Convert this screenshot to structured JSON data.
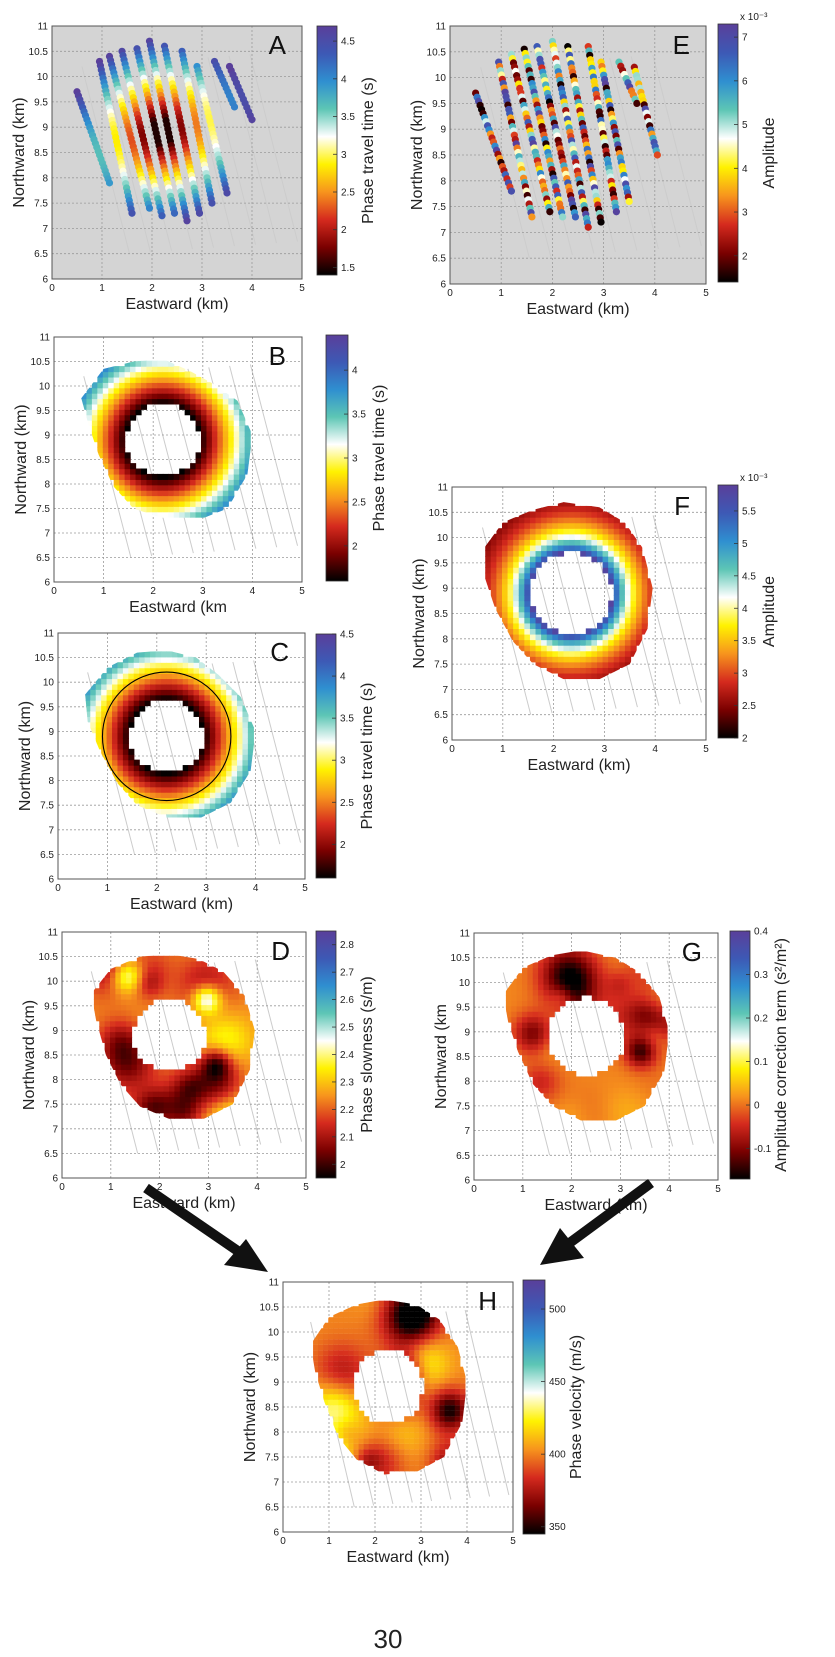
{
  "figure": {
    "page_number": "30"
  },
  "colors": {
    "colormap": [
      "#000000",
      "#7a0000",
      "#d52a1e",
      "#f7941d",
      "#fff200",
      "#ffffff",
      "#5dc6b5",
      "#2f8fd0",
      "#3d59b5",
      "#5a3f9a"
    ],
    "panel_background": "#d4d4d4",
    "arrow": "#111111"
  },
  "chart_data": [
    {
      "id": "A",
      "type": "scatter",
      "panel_label": "A",
      "xlabel": "Eastward (km)",
      "ylabel": "Northward (km)",
      "xlim": [
        0,
        5
      ],
      "ylim": [
        6,
        11
      ],
      "xticks": [
        "0",
        "1",
        "2",
        "3",
        "4",
        "5"
      ],
      "yticks": [
        "6",
        "6.5",
        "7",
        "7.5",
        "8",
        "8.5",
        "9",
        "9.5",
        "10",
        "10.5",
        "11"
      ],
      "colorbar": {
        "label": "Phase travel time (s)",
        "ticks": [
          "1.5",
          "2",
          "2.5",
          "3",
          "3.5",
          "4",
          "4.5"
        ],
        "range": [
          1.4,
          4.7
        ],
        "exponent": ""
      },
      "grid": true,
      "background": "gray",
      "source_x": 2.2,
      "source_y": 8.9,
      "field": "distance",
      "field_params": {
        "base": 1.5,
        "slope": 2.0
      },
      "lines": [
        {
          "x0": 0.5,
          "y0": 9.7,
          "x1": 1.15,
          "y1": 7.9
        },
        {
          "x0": 0.95,
          "y0": 10.3,
          "x1": 1.6,
          "y1": 7.3
        },
        {
          "x0": 1.15,
          "y0": 10.4,
          "x1": 1.95,
          "y1": 7.4
        },
        {
          "x0": 1.4,
          "y0": 10.5,
          "x1": 2.2,
          "y1": 7.25
        },
        {
          "x0": 1.7,
          "y0": 10.55,
          "x1": 2.45,
          "y1": 7.3
        },
        {
          "x0": 1.95,
          "y0": 10.7,
          "x1": 2.7,
          "y1": 7.15
        },
        {
          "x0": 2.25,
          "y0": 10.6,
          "x1": 2.95,
          "y1": 7.3
        },
        {
          "x0": 2.6,
          "y0": 10.5,
          "x1": 3.2,
          "y1": 7.5
        },
        {
          "x0": 2.9,
          "y0": 10.2,
          "x1": 3.5,
          "y1": 7.7
        },
        {
          "x0": 3.25,
          "y0": 10.3,
          "x1": 3.65,
          "y1": 9.4
        },
        {
          "x0": 3.55,
          "y0": 10.2,
          "x1": 4.0,
          "y1": 9.15
        }
      ]
    },
    {
      "id": "E",
      "type": "scatter",
      "panel_label": "E",
      "xlabel": "Eastward (km)",
      "ylabel": "Northward (km)",
      "xlim": [
        0,
        5
      ],
      "ylim": [
        6,
        11
      ],
      "xticks": [
        "0",
        "1",
        "2",
        "3",
        "4",
        "5"
      ],
      "yticks": [
        "6",
        "6.5",
        "7",
        "7.5",
        "8",
        "8.5",
        "9",
        "9.5",
        "10",
        "10.5",
        "11"
      ],
      "colorbar": {
        "label": "Amplitude",
        "ticks": [
          "2",
          "3",
          "4",
          "5",
          "6",
          "7"
        ],
        "range": [
          1.4,
          7.3
        ],
        "exponent": "x 10⁻³"
      },
      "grid": true,
      "background": "gray",
      "source_x": 2.2,
      "source_y": 8.9,
      "field": "noise",
      "lines": [
        {
          "x0": 0.5,
          "y0": 9.7,
          "x1": 1.2,
          "y1": 7.8
        },
        {
          "x0": 0.95,
          "y0": 10.3,
          "x1": 1.6,
          "y1": 7.3
        },
        {
          "x0": 1.2,
          "y0": 10.45,
          "x1": 1.95,
          "y1": 7.4
        },
        {
          "x0": 1.45,
          "y0": 10.55,
          "x1": 2.2,
          "y1": 7.3
        },
        {
          "x0": 1.7,
          "y0": 10.6,
          "x1": 2.45,
          "y1": 7.3
        },
        {
          "x0": 2.0,
          "y0": 10.7,
          "x1": 2.7,
          "y1": 7.1
        },
        {
          "x0": 2.3,
          "y0": 10.6,
          "x1": 2.95,
          "y1": 7.2
        },
        {
          "x0": 2.7,
          "y0": 10.6,
          "x1": 3.25,
          "y1": 7.4
        },
        {
          "x0": 2.95,
          "y0": 10.3,
          "x1": 3.5,
          "y1": 7.6
        },
        {
          "x0": 3.3,
          "y0": 10.3,
          "x1": 3.65,
          "y1": 9.5
        },
        {
          "x0": 3.6,
          "y0": 10.2,
          "x1": 4.05,
          "y1": 8.5
        }
      ]
    },
    {
      "id": "B",
      "type": "heatmap",
      "panel_label": "B",
      "xlabel": "Eastward (km",
      "ylabel": "Northward (km)",
      "xlim": [
        0,
        5
      ],
      "ylim": [
        6,
        11
      ],
      "xticks": [
        "0",
        "1",
        "2",
        "3",
        "4",
        "5"
      ],
      "yticks": [
        "6",
        "6.5",
        "7",
        "7.5",
        "8",
        "8.5",
        "9",
        "9.5",
        "10",
        "10.5",
        "11"
      ],
      "colorbar": {
        "label": "Phase travel time (s)",
        "ticks": [
          "2",
          "2.5",
          "3",
          "3.5",
          "4"
        ],
        "range": [
          1.6,
          4.4
        ],
        "exponent": ""
      },
      "grid": true,
      "background": "white",
      "source_x": 2.2,
      "source_y": 8.9,
      "inner_radius": 0.75,
      "field": "distance",
      "field_params": {
        "base": 1.6,
        "slope": 2.0
      },
      "domain": [
        [
          0.55,
          9.75
        ],
        [
          1.0,
          10.35
        ],
        [
          1.6,
          10.5
        ],
        [
          2.2,
          10.55
        ],
        [
          2.75,
          10.3
        ],
        [
          3.2,
          10.05
        ],
        [
          3.7,
          9.7
        ],
        [
          4.0,
          9.0
        ],
        [
          3.9,
          8.2
        ],
        [
          3.5,
          7.5
        ],
        [
          3.0,
          7.3
        ],
        [
          2.2,
          7.3
        ],
        [
          1.6,
          7.5
        ],
        [
          1.2,
          7.95
        ],
        [
          0.9,
          8.6
        ],
        [
          0.7,
          9.2
        ]
      ],
      "contours": []
    },
    {
      "id": "C",
      "type": "heatmap",
      "panel_label": "C",
      "xlabel": "Eastward (km)",
      "ylabel": "Northward (km)",
      "xlim": [
        0,
        5
      ],
      "ylim": [
        6,
        11
      ],
      "xticks": [
        "0",
        "1",
        "2",
        "3",
        "4",
        "5"
      ],
      "yticks": [
        "6",
        "6.5",
        "7",
        "7.5",
        "8",
        "8.5",
        "9",
        "9.5",
        "10",
        "10.5",
        "11"
      ],
      "colorbar": {
        "label": "Phase travel time (s)",
        "ticks": [
          "2",
          "2.5",
          "3",
          "3.5",
          "4",
          "4.5"
        ],
        "range": [
          1.6,
          4.5
        ],
        "exponent": ""
      },
      "grid": true,
      "background": "white",
      "source_x": 2.2,
      "source_y": 8.9,
      "inner_radius": 0.75,
      "field": "distance",
      "field_params": {
        "base": 1.6,
        "slope": 2.0
      },
      "domain": [
        [
          0.55,
          9.75
        ],
        [
          1.0,
          10.3
        ],
        [
          1.6,
          10.6
        ],
        [
          2.2,
          10.65
        ],
        [
          2.8,
          10.5
        ],
        [
          3.25,
          10.15
        ],
        [
          3.7,
          9.7
        ],
        [
          4.0,
          9.0
        ],
        [
          3.9,
          8.2
        ],
        [
          3.5,
          7.55
        ],
        [
          2.9,
          7.25
        ],
        [
          2.2,
          7.25
        ],
        [
          1.6,
          7.5
        ],
        [
          1.2,
          7.95
        ],
        [
          0.85,
          8.6
        ],
        [
          0.6,
          9.2
        ]
      ],
      "contours": [
        1.3,
        1.95
      ]
    },
    {
      "id": "F",
      "type": "heatmap",
      "panel_label": "F",
      "xlabel": "Eastward (km)",
      "ylabel": "Northward (km)",
      "xlim": [
        0,
        5
      ],
      "ylim": [
        6,
        11
      ],
      "xticks": [
        "0",
        "1",
        "2",
        "3",
        "4",
        "5"
      ],
      "yticks": [
        "6",
        "6.5",
        "7",
        "7.5",
        "8",
        "8.5",
        "9",
        "9.5",
        "10",
        "10.5",
        "11"
      ],
      "colorbar": {
        "label": "Amplitude",
        "ticks": [
          "2",
          "2.5",
          "3",
          "3.5",
          "4",
          "4.5",
          "5",
          "5.5"
        ],
        "range": [
          2.0,
          5.9
        ],
        "exponent": "x 10⁻³"
      },
      "grid": true,
      "background": "white",
      "source_x": 2.35,
      "source_y": 8.9,
      "inner_radius": 0.8,
      "field": "decay",
      "field_params": {
        "top": 5.9,
        "bottom": 2.0,
        "scale": 0.55
      },
      "domain": [
        [
          0.6,
          9.75
        ],
        [
          1.0,
          10.3
        ],
        [
          1.6,
          10.55
        ],
        [
          2.2,
          10.7
        ],
        [
          2.9,
          10.6
        ],
        [
          3.4,
          10.3
        ],
        [
          3.75,
          9.8
        ],
        [
          3.95,
          9.0
        ],
        [
          3.85,
          8.2
        ],
        [
          3.5,
          7.5
        ],
        [
          2.9,
          7.2
        ],
        [
          2.2,
          7.2
        ],
        [
          1.6,
          7.5
        ],
        [
          1.2,
          7.95
        ],
        [
          0.85,
          8.6
        ],
        [
          0.65,
          9.2
        ]
      ],
      "contours": []
    },
    {
      "id": "D",
      "type": "heatmap",
      "panel_label": "D",
      "xlabel": "Eastward (km)",
      "ylabel": "Northward (km)",
      "xlim": [
        0,
        5
      ],
      "ylim": [
        6,
        11
      ],
      "xticks": [
        "0",
        "1",
        "2",
        "3",
        "4",
        "5"
      ],
      "yticks": [
        "6",
        "6.5",
        "7",
        "7.5",
        "8",
        "8.5",
        "9",
        "9.5",
        "10",
        "10.5",
        "11"
      ],
      "colorbar": {
        "label": "Phase slowness (s/m)",
        "ticks": [
          "2",
          "2.1",
          "2.2",
          "2.3",
          "2.4",
          "2.5",
          "2.6",
          "2.7",
          "2.8"
        ],
        "range": [
          1.95,
          2.85
        ],
        "exponent": ""
      },
      "grid": true,
      "background": "white",
      "source_x": 2.2,
      "source_y": 8.9,
      "inner_radius": 0.75,
      "field": "blobs",
      "domain": [
        [
          0.6,
          9.75
        ],
        [
          1.0,
          10.25
        ],
        [
          1.6,
          10.5
        ],
        [
          2.2,
          10.55
        ],
        [
          2.8,
          10.45
        ],
        [
          3.3,
          10.2
        ],
        [
          3.75,
          9.7
        ],
        [
          3.95,
          9.0
        ],
        [
          3.85,
          8.2
        ],
        [
          3.5,
          7.5
        ],
        [
          2.9,
          7.2
        ],
        [
          2.2,
          7.2
        ],
        [
          1.6,
          7.45
        ],
        [
          1.2,
          7.9
        ],
        [
          0.9,
          8.5
        ],
        [
          0.7,
          9.2
        ]
      ],
      "contours": []
    },
    {
      "id": "G",
      "type": "heatmap",
      "panel_label": "G",
      "xlabel": "Eastward (km)",
      "ylabel": "Northward (km",
      "xlim": [
        0,
        5
      ],
      "ylim": [
        6,
        11
      ],
      "xticks": [
        "0",
        "1",
        "2",
        "3",
        "4",
        "5"
      ],
      "yticks": [
        "6",
        "6.5",
        "7",
        "7.5",
        "8",
        "8.5",
        "9",
        "9.5",
        "10",
        "10.5",
        "11"
      ],
      "colorbar": {
        "label": "Amplitude correction term (s²/m²)",
        "ticks": [
          "-0.1",
          "0",
          "0.1",
          "0.2",
          "0.3",
          "0.4"
        ],
        "range": [
          -0.17,
          0.4
        ],
        "exponent": ""
      },
      "grid": true,
      "background": "white",
      "source_x": 2.3,
      "source_y": 8.9,
      "inner_radius": 0.8,
      "field": "blobs",
      "domain": [
        [
          0.6,
          9.75
        ],
        [
          1.0,
          10.3
        ],
        [
          1.6,
          10.55
        ],
        [
          2.2,
          10.65
        ],
        [
          2.9,
          10.5
        ],
        [
          3.4,
          10.2
        ],
        [
          3.8,
          9.7
        ],
        [
          4.0,
          9.0
        ],
        [
          3.9,
          8.2
        ],
        [
          3.5,
          7.5
        ],
        [
          2.9,
          7.2
        ],
        [
          2.2,
          7.2
        ],
        [
          1.6,
          7.5
        ],
        [
          1.2,
          7.95
        ],
        [
          0.9,
          8.6
        ],
        [
          0.7,
          9.2
        ]
      ],
      "contours": []
    },
    {
      "id": "H",
      "type": "heatmap",
      "panel_label": "H",
      "xlabel": "Eastward (km)",
      "ylabel": "Northward (km)",
      "xlim": [
        0,
        5
      ],
      "ylim": [
        6,
        11
      ],
      "xticks": [
        "0",
        "1",
        "2",
        "3",
        "4",
        "5"
      ],
      "yticks": [
        "6",
        "6.5",
        "7",
        "7.5",
        "8",
        "8.5",
        "9",
        "9.5",
        "10",
        "10.5",
        "11"
      ],
      "colorbar": {
        "label": "Phase velocity (m/s)",
        "ticks": [
          "350",
          "400",
          "450",
          "500"
        ],
        "range": [
          345,
          520
        ],
        "exponent": ""
      },
      "grid": true,
      "background": "white",
      "source_x": 2.3,
      "source_y": 8.9,
      "inner_radius": 0.75,
      "field": "blobs",
      "domain": [
        [
          0.6,
          9.75
        ],
        [
          1.0,
          10.3
        ],
        [
          1.6,
          10.55
        ],
        [
          2.2,
          10.65
        ],
        [
          2.9,
          10.55
        ],
        [
          3.4,
          10.25
        ],
        [
          3.8,
          9.7
        ],
        [
          4.0,
          9.0
        ],
        [
          3.9,
          8.2
        ],
        [
          3.5,
          7.5
        ],
        [
          2.9,
          7.2
        ],
        [
          2.2,
          7.15
        ],
        [
          1.6,
          7.45
        ],
        [
          1.2,
          7.9
        ],
        [
          0.9,
          8.6
        ],
        [
          0.7,
          9.2
        ]
      ],
      "contours": []
    }
  ]
}
